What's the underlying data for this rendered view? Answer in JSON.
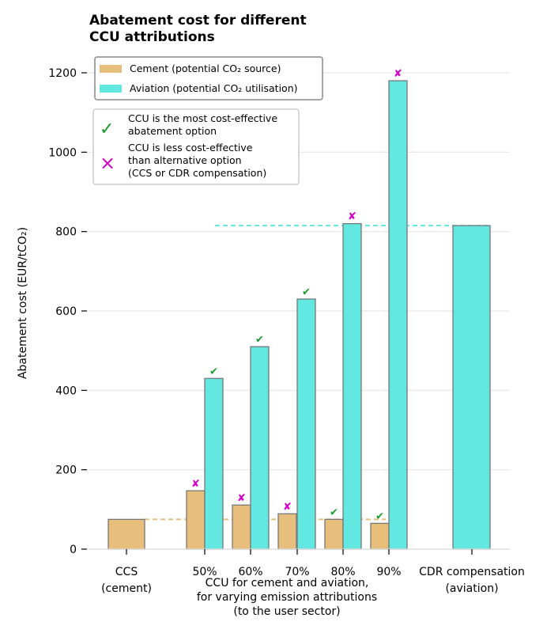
{
  "colors": {
    "cement": "#E8BE7C",
    "aviation": "#62E8E0",
    "edge": "#777777",
    "check": "#1A9B2A",
    "cross": "#D400C8",
    "grid": "#E6E6E6"
  },
  "chart_data": {
    "type": "bar",
    "title_lines": [
      "Abatement cost for different",
      "CCU attributions"
    ],
    "ylabel": "Abatement cost (EUR/tCO₂)",
    "xlabel_lines": [
      "CCU for cement and aviation,",
      "for varying emission attributions",
      "(to the user sector)"
    ],
    "ylim": [
      0,
      1250
    ],
    "yticks": [
      0,
      200,
      400,
      600,
      800,
      1000,
      1200
    ],
    "grid": true,
    "legend_placement": "top-left",
    "categories": [
      {
        "label_lines": [
          "CCS",
          "(cement)"
        ]
      },
      {
        "label_lines": [
          "50%"
        ]
      },
      {
        "label_lines": [
          "60%"
        ]
      },
      {
        "label_lines": [
          "70%"
        ]
      },
      {
        "label_lines": [
          "80%"
        ]
      },
      {
        "label_lines": [
          "90%"
        ]
      },
      {
        "label_lines": [
          "CDR compensation",
          "(aviation)"
        ]
      }
    ],
    "series": [
      {
        "name": "Cement (potential CO₂ source)",
        "color_key": "cement",
        "values": [
          75,
          147,
          111,
          89,
          75,
          65,
          null
        ],
        "markers": [
          null,
          "cross",
          "cross",
          "cross",
          "check",
          "check",
          null
        ]
      },
      {
        "name": "Aviation (potential CO₂ utilisation)",
        "color_key": "aviation",
        "values": [
          null,
          430,
          510,
          630,
          820,
          1180,
          815
        ],
        "markers": [
          null,
          "check",
          "check",
          "check",
          "cross",
          "cross",
          null
        ]
      }
    ],
    "reference_lines": [
      {
        "name": "CCS (cement) level",
        "color_key": "cement",
        "value": 75
      },
      {
        "name": "CDR compensation level",
        "color_key": "aviation",
        "value": 815
      }
    ],
    "marker_legend": [
      {
        "symbol": "✓",
        "color_key": "check",
        "lines": [
          "CCU is the most cost-effective",
          "abatement option"
        ]
      },
      {
        "symbol": "×",
        "color_key": "cross",
        "lines": [
          "CCU is less cost-effective",
          "than alternative option",
          "(CCS or CDR compensation)"
        ]
      }
    ],
    "marker_glyphs": {
      "check": "✔",
      "cross": "✘"
    }
  }
}
